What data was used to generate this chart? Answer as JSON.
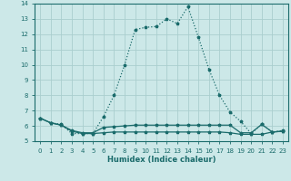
{
  "xlabel": "Humidex (Indice chaleur)",
  "xlim": [
    -0.5,
    23.5
  ],
  "ylim": [
    5,
    14
  ],
  "yticks": [
    5,
    6,
    7,
    8,
    9,
    10,
    11,
    12,
    13,
    14
  ],
  "xticks": [
    0,
    1,
    2,
    3,
    4,
    5,
    6,
    7,
    8,
    9,
    10,
    11,
    12,
    13,
    14,
    15,
    16,
    17,
    18,
    19,
    20,
    21,
    22,
    23
  ],
  "xtick_labels": [
    "0",
    "1",
    "2",
    "3",
    "4",
    "5",
    "6",
    "7",
    "8",
    "9",
    "10",
    "11",
    "12",
    "13",
    "14",
    "15",
    "16",
    "17",
    "18",
    "19",
    "20",
    "21",
    "22",
    "23"
  ],
  "bg_color": "#cce8e8",
  "grid_color": "#aacece",
  "line_color": "#1a6b6b",
  "line1_x": [
    0,
    1,
    2,
    3,
    4,
    5,
    6,
    7,
    8,
    9,
    10,
    11,
    12,
    13,
    14,
    15,
    16,
    17,
    18,
    19,
    20,
    21,
    22,
    23
  ],
  "line1_y": [
    6.5,
    6.2,
    6.1,
    5.5,
    5.5,
    5.5,
    6.6,
    8.0,
    10.0,
    12.3,
    12.45,
    12.5,
    13.0,
    12.7,
    13.8,
    11.8,
    9.7,
    8.0,
    6.9,
    6.3,
    5.5,
    6.1,
    5.6,
    5.7
  ],
  "line2_x": [
    0,
    1,
    2,
    3,
    4,
    5,
    6,
    7,
    8,
    9,
    10,
    11,
    12,
    13,
    14,
    15,
    16,
    17,
    18,
    19,
    20,
    21,
    22,
    23
  ],
  "line2_y": [
    6.5,
    6.2,
    6.05,
    5.7,
    5.55,
    5.55,
    5.9,
    5.95,
    6.0,
    6.05,
    6.05,
    6.05,
    6.05,
    6.05,
    6.05,
    6.05,
    6.05,
    6.05,
    6.05,
    5.55,
    5.55,
    6.1,
    5.6,
    5.65
  ],
  "line3_x": [
    0,
    1,
    2,
    3,
    4,
    5,
    6,
    7,
    8,
    9,
    10,
    11,
    12,
    13,
    14,
    15,
    16,
    17,
    18,
    19,
    20,
    21,
    22,
    23
  ],
  "line3_y": [
    6.5,
    6.2,
    6.05,
    5.65,
    5.5,
    5.5,
    5.55,
    5.6,
    5.6,
    5.6,
    5.6,
    5.6,
    5.6,
    5.6,
    5.6,
    5.6,
    5.6,
    5.6,
    5.55,
    5.45,
    5.45,
    5.45,
    5.6,
    5.65
  ]
}
